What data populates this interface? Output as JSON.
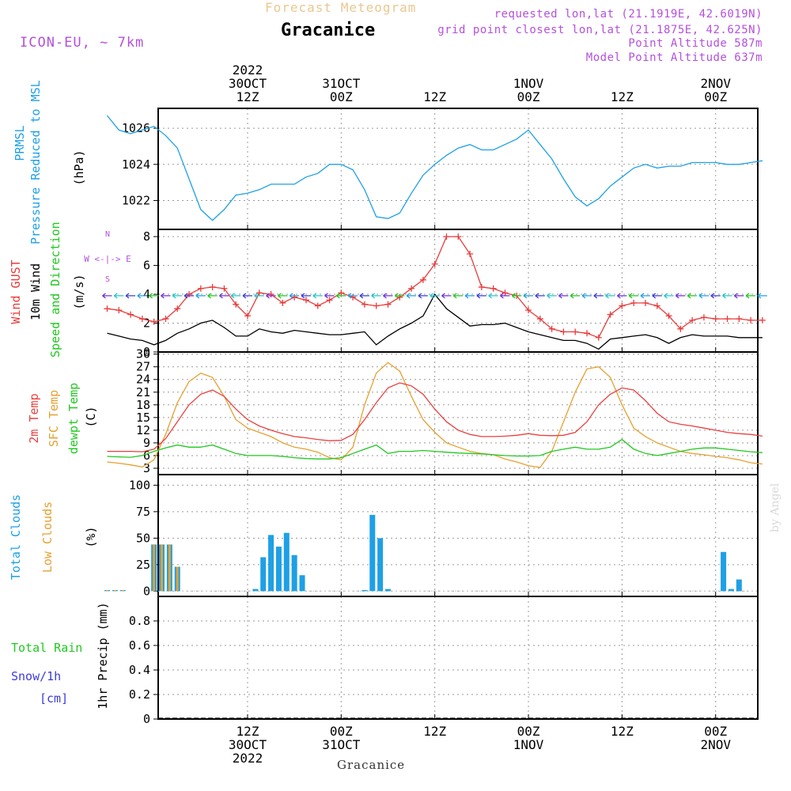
{
  "header": {
    "product_title": "Forecast Meteogram",
    "station": "Gracanice",
    "model": "ICON-EU, ~ 7km",
    "requested": "requested lon,lat (21.1919E, 42.6019N)",
    "grid_point": "grid point closest lon,lat (21.1875E, 42.625N)",
    "point_altitude": "Point Altitude 587m",
    "model_altitude": "Model Point Altitude 637m",
    "credit": "by Angel",
    "bottom_name": "Gracanice"
  },
  "time_axis": {
    "top_labels": [
      {
        "h": 0,
        "lines": [
          "2022",
          "30OCT",
          "12Z"
        ]
      },
      {
        "h": 12,
        "lines": [
          "31OCT",
          "00Z"
        ]
      },
      {
        "h": 24,
        "lines": [
          "12Z"
        ]
      },
      {
        "h": 36,
        "lines": [
          "1NOV",
          "00Z"
        ]
      },
      {
        "h": 48,
        "lines": [
          "12Z"
        ]
      },
      {
        "h": 60,
        "lines": [
          "2NOV",
          "00Z"
        ]
      }
    ],
    "bottom_labels": [
      {
        "h": 0,
        "lines": [
          "12Z",
          "30OCT",
          "2022"
        ]
      },
      {
        "h": 12,
        "lines": [
          "00Z",
          "31OCT"
        ]
      },
      {
        "h": 24,
        "lines": [
          "12Z"
        ]
      },
      {
        "h": 36,
        "lines": [
          "00Z",
          "1NOV"
        ]
      },
      {
        "h": 48,
        "lines": [
          "12Z"
        ]
      },
      {
        "h": 60,
        "lines": [
          "00Z",
          "2NOV"
        ]
      }
    ]
  },
  "panel_labels": {
    "pressure": {
      "name": "PRMSL",
      "desc": "Pressure Reduced to MSL",
      "unit": "(hPa)"
    },
    "wind": {
      "gust": "Wind GUST",
      "wind10m": "10m Wind",
      "speed_dir": "Speed and Direction",
      "unit": "(m/s)",
      "compass_n": "N",
      "compass_s": "S",
      "compass_row": "W <-|-> E"
    },
    "temp": {
      "t2m": "2m Temp",
      "sfc": "SFC Temp",
      "dewpt": "dewpt Temp",
      "unit": "(C)"
    },
    "clouds": {
      "total": "Total Clouds",
      "low": "Low Clouds",
      "unit": "(%)"
    },
    "precip": {
      "rain": "Total  Rain",
      "snow": "Snow/1h",
      "snow_unit": "[cm]",
      "axis": "1hr Precip (mm)"
    }
  },
  "colors": {
    "pressure": "#1ea0e6",
    "gust": "#e83c3c",
    "wind": "#000000",
    "temp2m": "#e84040",
    "sfc": "#e6a030",
    "dewpt": "#20c820",
    "total_clouds": "#1ea0e6",
    "low_clouds": "#e6a030",
    "rain": "#20c820",
    "snow": "#3c3cdc",
    "info": "#b450dc"
  },
  "chart_data": [
    {
      "type": "line",
      "name": "pressure",
      "ylabel": "(hPa)",
      "ylim": [
        1020.4,
        1027.1
      ],
      "yticks": [
        1022,
        1024,
        1026
      ],
      "x": [
        -18,
        -16.5,
        -15,
        -13.5,
        -12,
        -10.5,
        -9,
        -7.5,
        -6,
        -4.5,
        -3,
        -1.5,
        0,
        1.5,
        3,
        4.5,
        6,
        7.5,
        9,
        10.5,
        12,
        13.5,
        15,
        16.5,
        18,
        19.5,
        21,
        22.5,
        24,
        25.5,
        27,
        28.5,
        30,
        31.5,
        33,
        34.5,
        36,
        37.5,
        39,
        40.5,
        42,
        43.5,
        45,
        46.5,
        48,
        49.5,
        51,
        52.5,
        54,
        55.5,
        57,
        58.5,
        60,
        61.5,
        63,
        64.5,
        66
      ],
      "series": [
        {
          "values": [
            1026.7,
            1025.9,
            1025.7,
            1025.9,
            1026.1,
            1025.6,
            1024.9,
            1023.2,
            1021.5,
            1020.9,
            1021.5,
            1022.3,
            1022.4,
            1022.6,
            1022.9,
            1022.9,
            1022.9,
            1023.3,
            1023.5,
            1024.0,
            1024.0,
            1023.7,
            1022.6,
            1021.1,
            1021.0,
            1021.3,
            1022.4,
            1023.4,
            1024.0,
            1024.5,
            1024.9,
            1025.1,
            1024.8,
            1024.8,
            1025.1,
            1025.4,
            1025.9,
            1025.1,
            1024.3,
            1023.2,
            1022.2,
            1021.7,
            1022.1,
            1022.8,
            1023.3,
            1023.8,
            1024.0,
            1023.8,
            1023.9,
            1023.9,
            1024.1,
            1024.1,
            1024.1,
            1024.0,
            1024.0,
            1024.1,
            1024.2
          ]
        }
      ]
    },
    {
      "type": "line",
      "name": "wind",
      "ylabel": "(m/s)",
      "ylim": [
        0,
        8.5
      ],
      "yticks": [
        0,
        2,
        4,
        6,
        8
      ],
      "x": [
        -18,
        -16.5,
        -15,
        -13.5,
        -12,
        -10.5,
        -9,
        -7.5,
        -6,
        -4.5,
        -3,
        -1.5,
        0,
        1.5,
        3,
        4.5,
        6,
        7.5,
        9,
        10.5,
        12,
        13.5,
        15,
        16.5,
        18,
        19.5,
        21,
        22.5,
        24,
        25.5,
        27,
        28.5,
        30,
        31.5,
        33,
        34.5,
        36,
        37.5,
        39,
        40.5,
        42,
        43.5,
        45,
        46.5,
        48,
        49.5,
        51,
        52.5,
        54,
        55.5,
        57,
        58.5,
        60,
        61.5,
        63,
        64.5,
        66
      ],
      "series": [
        {
          "name": "Wind GUST",
          "values": [
            3.0,
            2.9,
            2.6,
            2.3,
            2.1,
            2.3,
            3.0,
            4.0,
            4.4,
            4.5,
            4.4,
            3.3,
            2.5,
            4.1,
            4.0,
            3.4,
            3.8,
            3.6,
            3.2,
            3.6,
            4.1,
            3.8,
            3.3,
            3.2,
            3.3,
            3.8,
            4.4,
            5.0,
            6.1,
            8.0,
            8.0,
            6.8,
            4.5,
            4.4,
            4.1,
            3.9,
            2.9,
            2.3,
            1.6,
            1.4,
            1.4,
            1.3,
            1.0,
            2.6,
            3.2,
            3.4,
            3.4,
            3.2,
            2.5,
            1.6,
            2.2,
            2.4,
            2.3,
            2.3,
            2.3,
            2.2,
            2.2
          ]
        },
        {
          "name": "10m Wind",
          "values": [
            1.3,
            1.1,
            0.9,
            0.8,
            0.5,
            0.8,
            1.3,
            1.6,
            2.0,
            2.2,
            1.7,
            1.1,
            1.1,
            1.6,
            1.4,
            1.3,
            1.5,
            1.4,
            1.3,
            1.2,
            1.2,
            1.3,
            1.4,
            0.5,
            1.1,
            1.6,
            2.0,
            2.5,
            4.0,
            3.0,
            2.4,
            1.8,
            1.9,
            1.9,
            2.0,
            1.7,
            1.4,
            1.2,
            1.0,
            0.8,
            0.8,
            0.6,
            0.2,
            0.9,
            1.0,
            1.1,
            1.2,
            1.0,
            0.6,
            1.0,
            1.2,
            1.1,
            1.1,
            1.1,
            1.0,
            1.0,
            1.0
          ]
        }
      ]
    },
    {
      "type": "line",
      "name": "temperature",
      "ylabel": "(C)",
      "ylim": [
        1.5,
        30.5
      ],
      "yticks": [
        3,
        6,
        9,
        12,
        15,
        18,
        21,
        24,
        27,
        30
      ],
      "x": [
        -18,
        -16.5,
        -15,
        -13.5,
        -12,
        -10.5,
        -9,
        -7.5,
        -6,
        -4.5,
        -3,
        -1.5,
        0,
        1.5,
        3,
        4.5,
        6,
        7.5,
        9,
        10.5,
        12,
        13.5,
        15,
        16.5,
        18,
        19.5,
        21,
        22.5,
        24,
        25.5,
        27,
        28.5,
        30,
        31.5,
        33,
        34.5,
        36,
        37.5,
        39,
        40.5,
        42,
        43.5,
        45,
        46.5,
        48,
        49.5,
        51,
        52.5,
        54,
        55.5,
        57,
        58.5,
        60,
        61.5,
        63,
        64.5,
        66
      ],
      "series": [
        {
          "name": "2m Temp",
          "values": [
            7.0,
            7.0,
            7.0,
            6.9,
            7.5,
            10.0,
            14.0,
            18.0,
            20.5,
            21.5,
            20.0,
            17.0,
            14.5,
            13.0,
            12.0,
            11.2,
            10.5,
            10.2,
            9.8,
            9.5,
            9.6,
            11.0,
            14.5,
            18.5,
            22.0,
            23.2,
            22.5,
            20.5,
            17.0,
            14.0,
            12.0,
            11.0,
            10.5,
            10.5,
            10.6,
            10.8,
            11.2,
            10.8,
            10.7,
            10.8,
            11.5,
            14.0,
            18.0,
            20.5,
            22.0,
            21.5,
            19.0,
            16.0,
            14.0,
            13.4,
            13.0,
            12.5,
            12.0,
            11.5,
            11.2,
            11.0,
            10.6
          ]
        },
        {
          "name": "SFC Temp",
          "values": [
            4.5,
            4.2,
            3.8,
            3.3,
            5.0,
            11.0,
            18.5,
            23.5,
            25.5,
            24.5,
            20.0,
            14.5,
            12.5,
            11.5,
            10.5,
            9.0,
            8.0,
            7.5,
            6.8,
            5.5,
            5.0,
            8.0,
            18.0,
            25.5,
            28.0,
            26.0,
            20.0,
            14.5,
            11.5,
            9.0,
            8.0,
            7.0,
            6.5,
            6.2,
            5.2,
            4.5,
            3.6,
            3.2,
            7.0,
            14.0,
            21.0,
            26.5,
            27.0,
            24.5,
            18.0,
            12.5,
            10.5,
            9.0,
            8.0,
            7.0,
            6.5,
            6.2,
            5.8,
            5.5,
            5.0,
            4.3,
            4.0
          ]
        },
        {
          "name": "dewpt Temp",
          "values": [
            5.8,
            5.7,
            5.6,
            6.0,
            7.0,
            7.8,
            8.5,
            8.0,
            8.0,
            8.5,
            7.5,
            6.5,
            6.0,
            6.0,
            6.0,
            5.8,
            5.5,
            5.3,
            5.2,
            5.2,
            5.5,
            6.5,
            7.5,
            8.5,
            6.5,
            7.0,
            7.0,
            7.2,
            7.0,
            6.8,
            6.6,
            6.5,
            6.4,
            6.2,
            6.0,
            5.9,
            5.9,
            6.0,
            7.0,
            7.5,
            8.0,
            7.5,
            7.5,
            8.0,
            9.8,
            7.5,
            6.5,
            6.0,
            6.5,
            7.0,
            7.5,
            7.8,
            7.8,
            7.5,
            7.2,
            6.9,
            6.7
          ]
        }
      ]
    },
    {
      "type": "bar",
      "name": "clouds",
      "ylabel": "(%)",
      "ylim": [
        -5,
        110
      ],
      "yticks": [
        0,
        25,
        50,
        75,
        100
      ],
      "bars": [
        {
          "h": -18,
          "total": 1,
          "low": 1
        },
        {
          "h": -17,
          "total": 1,
          "low": 1
        },
        {
          "h": -16,
          "total": 1,
          "low": 1
        },
        {
          "h": -14,
          "total": 0,
          "low": 0
        },
        {
          "h": -12,
          "total": 44,
          "low": 44
        },
        {
          "h": -11,
          "total": 44,
          "low": 44
        },
        {
          "h": -10,
          "total": 44,
          "low": 44
        },
        {
          "h": -9,
          "total": 23,
          "low": 23
        },
        {
          "h": 1,
          "total": 2,
          "low": 0
        },
        {
          "h": 2,
          "total": 32,
          "low": 0
        },
        {
          "h": 3,
          "total": 53,
          "low": 0
        },
        {
          "h": 4,
          "total": 42,
          "low": 0
        },
        {
          "h": 5,
          "total": 55,
          "low": 0
        },
        {
          "h": 6,
          "total": 34,
          "low": 0
        },
        {
          "h": 7,
          "total": 15,
          "low": 0
        },
        {
          "h": 15,
          "total": 1,
          "low": 0
        },
        {
          "h": 16,
          "total": 72,
          "low": 0
        },
        {
          "h": 17,
          "total": 50,
          "low": 0
        },
        {
          "h": 18,
          "total": 2,
          "low": 0
        },
        {
          "h": 61,
          "total": 37,
          "low": 0
        },
        {
          "h": 62,
          "total": 2,
          "low": 0
        },
        {
          "h": 63,
          "total": 11,
          "low": 0
        }
      ]
    },
    {
      "type": "bar",
      "name": "precipitation",
      "ylabel": "1hr Precip (mm)",
      "ylim": [
        0,
        1.0
      ],
      "yticks": [
        0,
        0.2,
        0.4,
        0.6,
        0.8
      ],
      "series": [
        {
          "name": "Total  Rain",
          "values": []
        },
        {
          "name": "Snow/1h",
          "values": []
        }
      ]
    }
  ]
}
